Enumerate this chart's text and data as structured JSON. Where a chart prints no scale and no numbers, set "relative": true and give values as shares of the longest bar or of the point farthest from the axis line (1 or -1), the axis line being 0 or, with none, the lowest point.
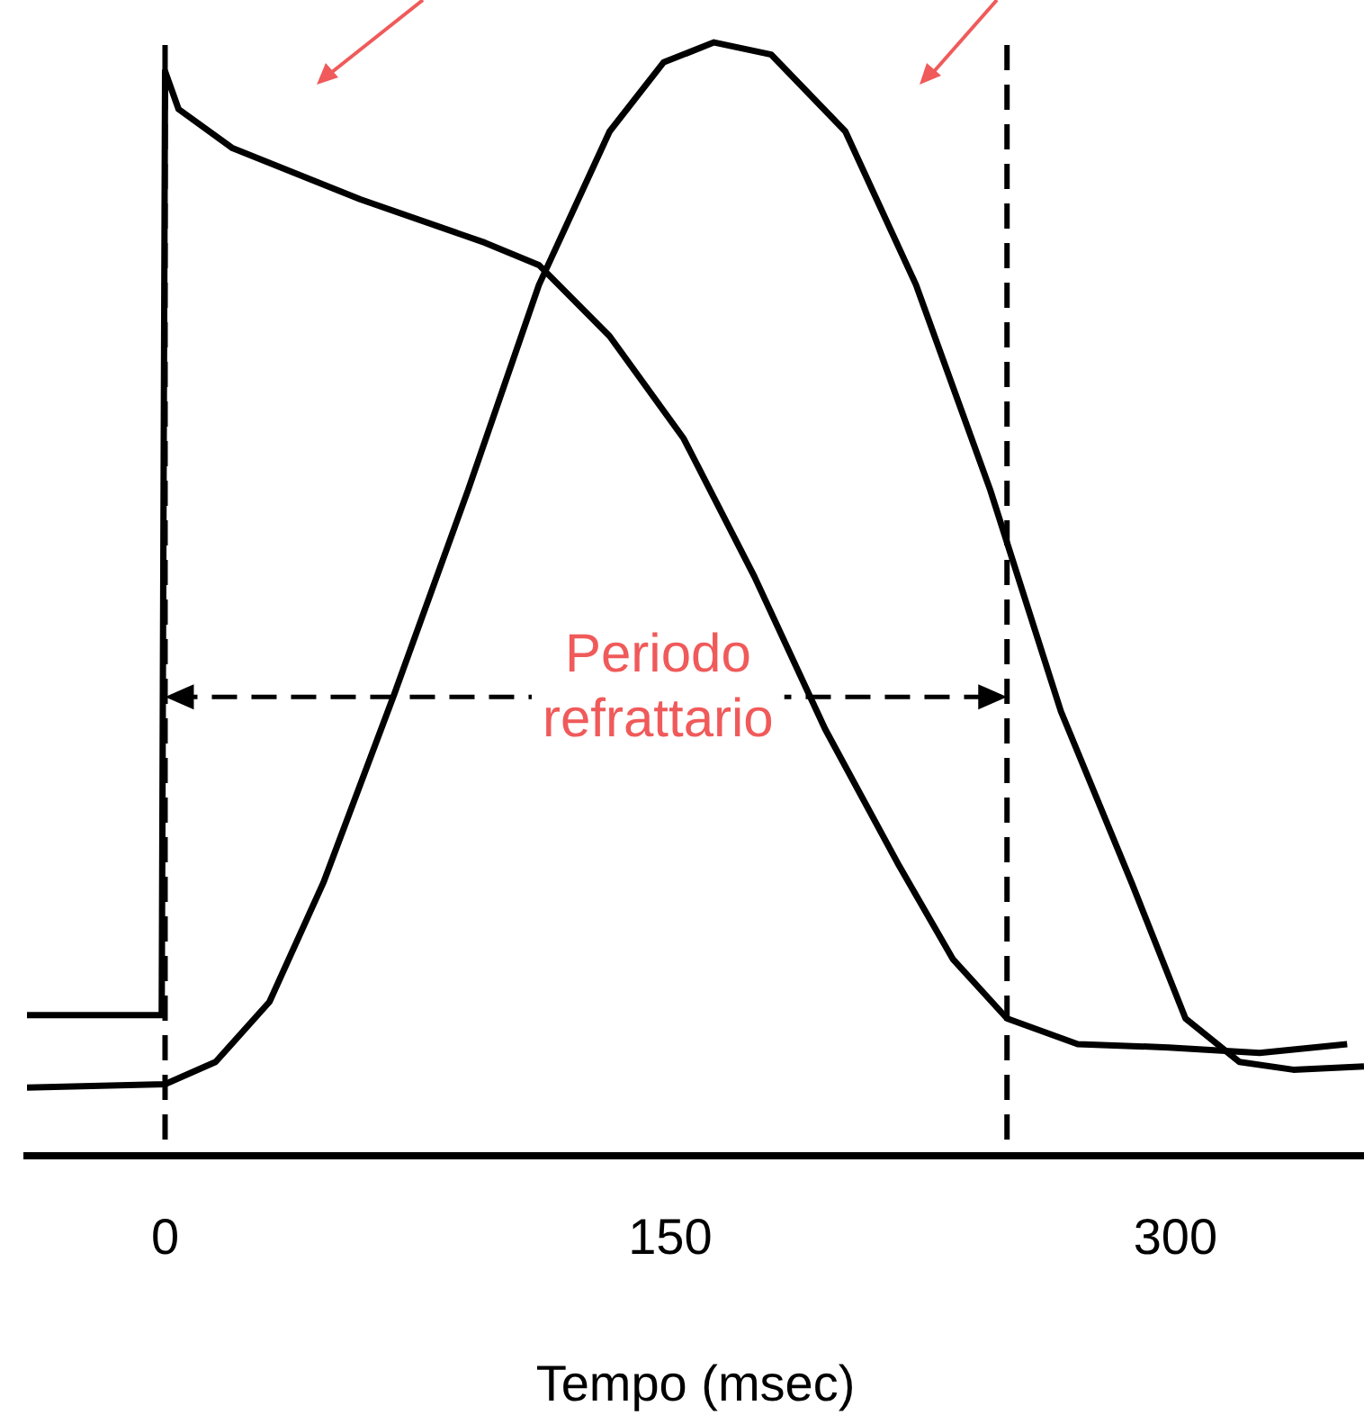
{
  "chart_data": {
    "type": "line",
    "relative": true,
    "xlabel": "Tempo (msec)",
    "xlim": [
      -41,
      356
    ],
    "xticks": [
      0,
      150,
      300
    ],
    "grid": false,
    "legend": false,
    "marker": "none",
    "line_style": "solid",
    "series": [
      {
        "color": "#000000",
        "x": [
          -41,
          -1,
          0,
          4,
          20,
          58,
          95,
          111,
          132,
          154,
          175,
          196,
          218,
          234,
          250,
          271,
          298,
          325,
          351
        ],
        "values": [
          0.126,
          0.126,
          0.974,
          0.94,
          0.905,
          0.859,
          0.82,
          0.8,
          0.736,
          0.644,
          0.52,
          0.383,
          0.26,
          0.176,
          0.123,
          0.1,
          0.097,
          0.092,
          0.1
        ]
      },
      {
        "color": "#000000",
        "x": [
          -41,
          0,
          15,
          31,
          47,
          68,
          90,
          111,
          132,
          148,
          163,
          180,
          202,
          223,
          245,
          266,
          287,
          303,
          319,
          335,
          356
        ],
        "values": [
          0.061,
          0.064,
          0.084,
          0.138,
          0.245,
          0.414,
          0.598,
          0.782,
          0.92,
          0.982,
          1.0,
          0.989,
          0.92,
          0.782,
          0.598,
          0.399,
          0.245,
          0.123,
          0.084,
          0.077,
          0.08
        ]
      }
    ],
    "ref_lines": [
      {
        "axis": "x",
        "value": 0,
        "line_style": "dashed"
      },
      {
        "axis": "x",
        "value": 250,
        "line_style": "dashed"
      }
    ],
    "annotations": [
      "Periodo refrattario"
    ]
  }
}
